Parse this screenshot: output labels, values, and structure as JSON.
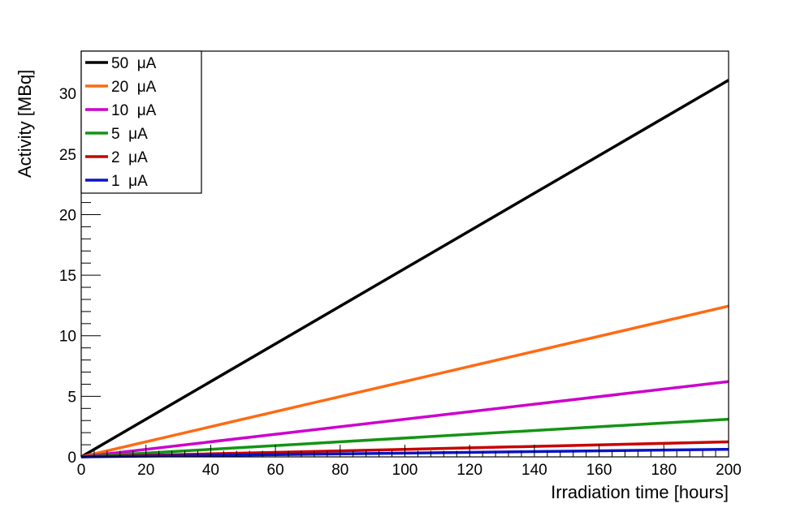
{
  "chart_data": {
    "type": "line",
    "title": "",
    "xlabel": "Irradiation time [hours]",
    "ylabel": "Activity [MBq]",
    "xlim": [
      0,
      200
    ],
    "ylim": [
      0,
      33.5
    ],
    "x_ticks": [
      "0",
      "20",
      "40",
      "60",
      "80",
      "100",
      "120",
      "140",
      "160",
      "180",
      "200"
    ],
    "y_ticks": [
      "0",
      "5",
      "10",
      "15",
      "20",
      "25",
      "30"
    ],
    "grid": false,
    "legend_position": "top-left",
    "series": [
      {
        "name": "50  μA",
        "color": "#000000",
        "x": [
          0,
          200
        ],
        "y": [
          0,
          31.1
        ]
      },
      {
        "name": "20  μA",
        "color": "#ff6a13",
        "x": [
          0,
          200
        ],
        "y": [
          0,
          12.45
        ]
      },
      {
        "name": "10  μA",
        "color": "#cc00cc",
        "x": [
          0,
          200
        ],
        "y": [
          0,
          6.22
        ]
      },
      {
        "name": "5  μA",
        "color": "#149414",
        "x": [
          0,
          200
        ],
        "y": [
          0,
          3.11
        ]
      },
      {
        "name": "2  μA",
        "color": "#c80000",
        "x": [
          0,
          200
        ],
        "y": [
          0,
          1.24
        ]
      },
      {
        "name": "1  μA",
        "color": "#0a14c8",
        "x": [
          0,
          200
        ],
        "y": [
          0,
          0.62
        ]
      }
    ]
  }
}
